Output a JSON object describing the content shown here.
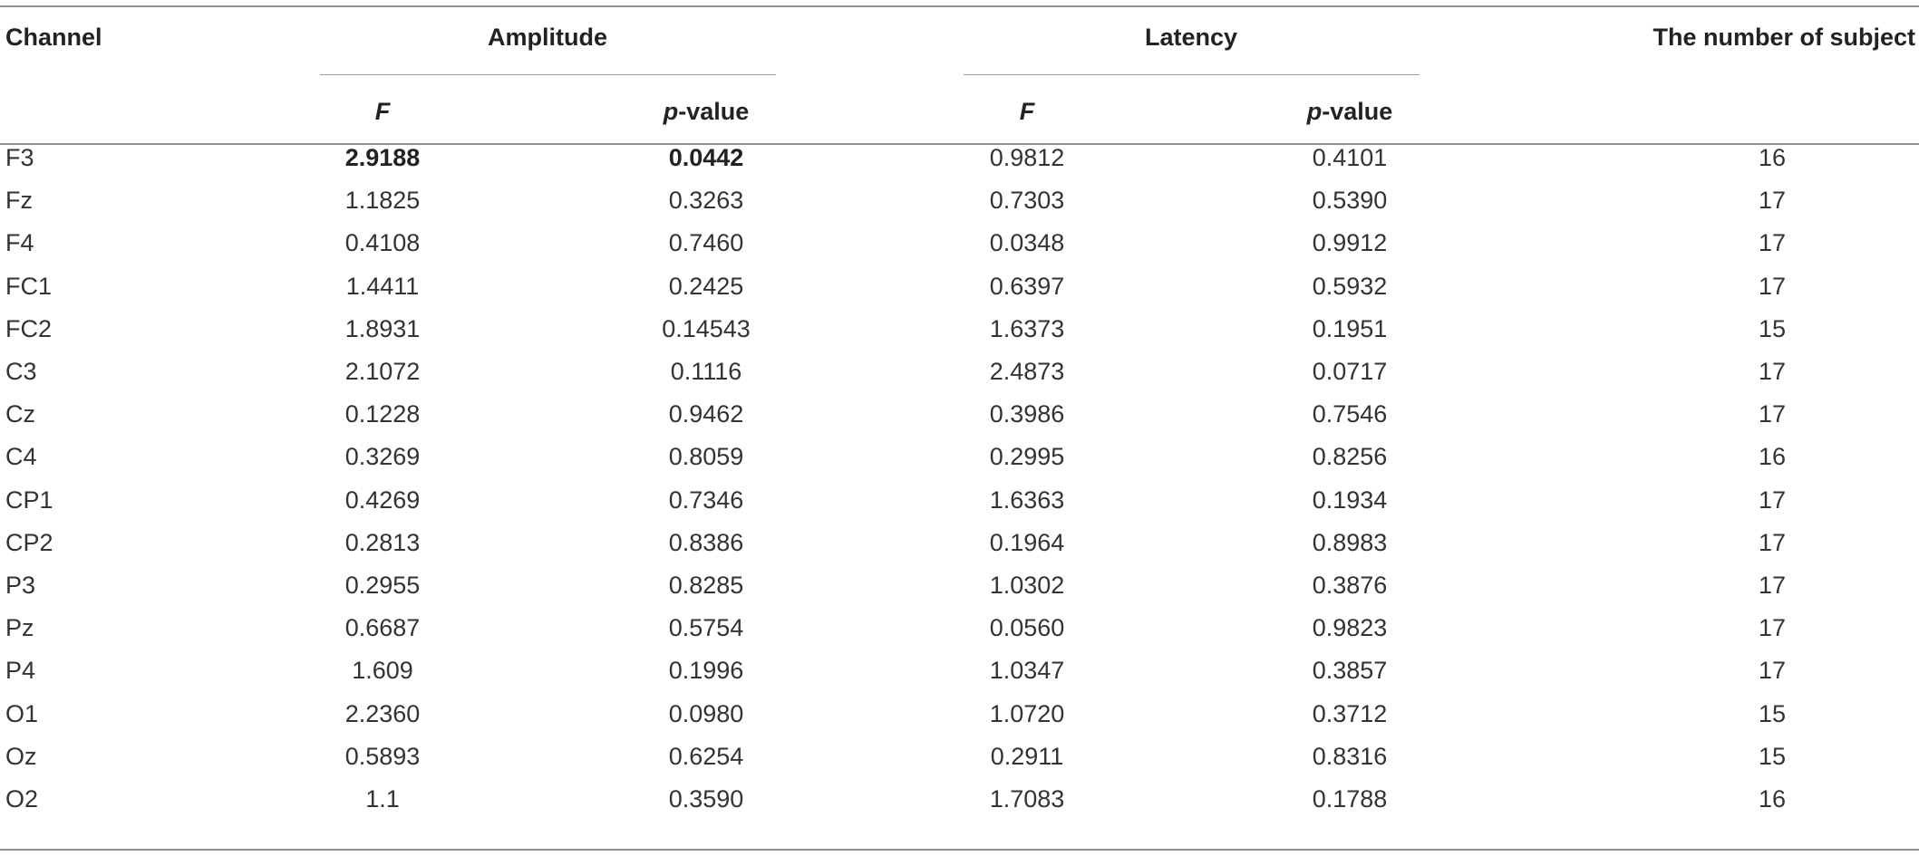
{
  "table": {
    "headers": {
      "channel": "Channel",
      "amplitude": "Amplitude",
      "latency": "Latency",
      "subjects": "The number of subject",
      "f": "F",
      "p_italic": "p",
      "p_suffix": "-value"
    },
    "rows": [
      {
        "channel": "F3",
        "amp_f": "2.9188",
        "amp_p": "0.0442",
        "lat_f": "0.9812",
        "lat_p": "0.4101",
        "n": "16",
        "highlight_amp": true
      },
      {
        "channel": "Fz",
        "amp_f": "1.1825",
        "amp_p": "0.3263",
        "lat_f": "0.7303",
        "lat_p": "0.5390",
        "n": "17"
      },
      {
        "channel": "F4",
        "amp_f": "0.4108",
        "amp_p": "0.7460",
        "lat_f": "0.0348",
        "lat_p": "0.9912",
        "n": "17"
      },
      {
        "channel": "FC1",
        "amp_f": "1.4411",
        "amp_p": "0.2425",
        "lat_f": "0.6397",
        "lat_p": "0.5932",
        "n": "17"
      },
      {
        "channel": "FC2",
        "amp_f": "1.8931",
        "amp_p": "0.14543",
        "lat_f": "1.6373",
        "lat_p": "0.1951",
        "n": "15"
      },
      {
        "channel": "C3",
        "amp_f": "2.1072",
        "amp_p": "0.1116",
        "lat_f": "2.4873",
        "lat_p": "0.0717",
        "n": "17"
      },
      {
        "channel": "Cz",
        "amp_f": "0.1228",
        "amp_p": "0.9462",
        "lat_f": "0.3986",
        "lat_p": "0.7546",
        "n": "17"
      },
      {
        "channel": "C4",
        "amp_f": "0.3269",
        "amp_p": "0.8059",
        "lat_f": "0.2995",
        "lat_p": "0.8256",
        "n": "16"
      },
      {
        "channel": "CP1",
        "amp_f": "0.4269",
        "amp_p": "0.7346",
        "lat_f": "1.6363",
        "lat_p": "0.1934",
        "n": "17"
      },
      {
        "channel": "CP2",
        "amp_f": "0.2813",
        "amp_p": "0.8386",
        "lat_f": "0.1964",
        "lat_p": "0.8983",
        "n": "17"
      },
      {
        "channel": "P3",
        "amp_f": "0.2955",
        "amp_p": "0.8285",
        "lat_f": "1.0302",
        "lat_p": "0.3876",
        "n": "17"
      },
      {
        "channel": "Pz",
        "amp_f": "0.6687",
        "amp_p": "0.5754",
        "lat_f": "0.0560",
        "lat_p": "0.9823",
        "n": "17"
      },
      {
        "channel": "P4",
        "amp_f": "1.609",
        "amp_p": "0.1996",
        "lat_f": "1.0347",
        "lat_p": "0.3857",
        "n": "17"
      },
      {
        "channel": "O1",
        "amp_f": "2.2360",
        "amp_p": "0.0980",
        "lat_f": "1.0720",
        "lat_p": "0.3712",
        "n": "15"
      },
      {
        "channel": "Oz",
        "amp_f": "0.5893",
        "amp_p": "0.6254",
        "lat_f": "0.2911",
        "lat_p": "0.8316",
        "n": "15"
      },
      {
        "channel": "O2",
        "amp_f": "1.1",
        "amp_p": "0.3590",
        "lat_f": "1.7083",
        "lat_p": "0.1788",
        "n": "16"
      }
    ]
  }
}
